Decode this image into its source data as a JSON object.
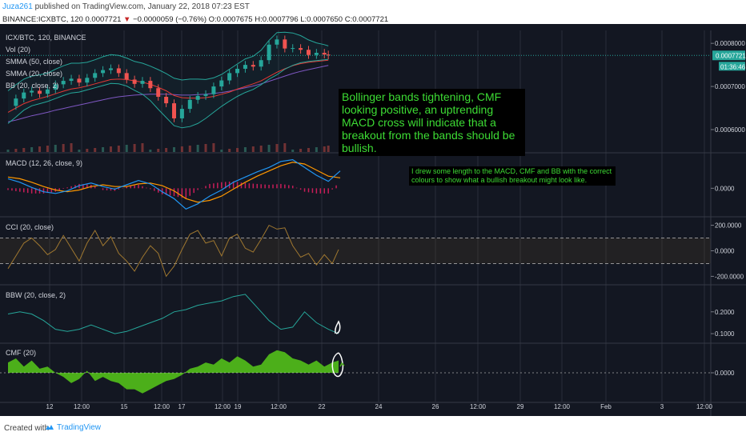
{
  "header": {
    "author": "Juza261",
    "published": "published on TradingView.com, January 22, 2018 07:23 EST",
    "symbol": "BINANCE:ICXBTC, 120",
    "last": "0.0007721",
    "arrow": "▼",
    "change": "−0.0000059 (−0.76%)",
    "ohlc": "O:0.0007675 H:0.0007796 L:0.0007650 C:0.0007721"
  },
  "panes": {
    "price": {
      "labels": [
        "ICX/BTC, 120, BINANCE",
        "Vol (20)",
        "SMMA (50, close)",
        "SMMA (20, close)",
        "BB (20, close, 2)"
      ],
      "axis": [
        "0.0008000",
        "0.0007000",
        "0.0006000"
      ],
      "last_price": "0.0007721",
      "countdown": "01:36:46"
    },
    "macd": {
      "label": "MACD (12, 26, close, 9)",
      "axis": [
        "0.0000"
      ]
    },
    "cci": {
      "label": "CCI (20, close)",
      "axis": [
        "200.0000",
        "0.0000",
        "-200.0000"
      ]
    },
    "bbw": {
      "label": "BBW (20, close, 2)",
      "axis": [
        "0.2000",
        "0.1000"
      ]
    },
    "cmf": {
      "label": "CMF (20)",
      "axis": [
        "0.0000"
      ]
    }
  },
  "time_axis": [
    "12",
    "12:00",
    "15",
    "12:00",
    "17",
    "12:00",
    "19",
    "12:00",
    "22",
    "24",
    "26",
    "12:00",
    "29",
    "12:00",
    "Feb",
    "3",
    "12:00"
  ],
  "notes": {
    "big": "Bollinger bands tightening, CMF looking positive, an uptrending MACD cross will indicate that a breakout from the bands should be bullish.",
    "small": "I drew some length to the MACD, CMF and BB with the correct colours to show what a bullish breakout might look like."
  },
  "footer": {
    "created": "Created with",
    "brand": "TradingView"
  },
  "colors": {
    "background": "#131722",
    "grid": "#2a2e39",
    "bb": "#26a69a",
    "smma50": "#7e57c2",
    "smma20": "#e53935",
    "macd": "#2196f3",
    "signal": "#ff9800",
    "hist": "#e91e63",
    "cci": "#a07830",
    "bbw": "#26a69a",
    "cmf": "#4caf1a",
    "note_text": "#3ddc34",
    "last_price_tag": "#26a69a"
  },
  "chart_data": [
    {
      "type": "line",
      "name": "ICX/BTC price",
      "title": "ICX/BTC, 120, BINANCE",
      "x": [
        0,
        10,
        20,
        30,
        40,
        50,
        60,
        70,
        80,
        90,
        100,
        110,
        120,
        130,
        140,
        150,
        160,
        170,
        180,
        190,
        200,
        210,
        220,
        230,
        240,
        250,
        260,
        270,
        280,
        290,
        300,
        310,
        320,
        330,
        340,
        350,
        360,
        370,
        380,
        390,
        400,
        405
      ],
      "series": [
        {
          "name": "close",
          "values": [
            0.000655,
            0.000672,
            0.000686,
            0.00069,
            0.000683,
            0.000693,
            0.000705,
            0.000713,
            0.000718,
            0.000709,
            0.00072,
            0.000731,
            0.000738,
            0.000742,
            0.000731,
            0.000716,
            0.000706,
            0.000713,
            0.000696,
            0.000676,
            0.000661,
            0.000626,
            0.000648,
            0.000669,
            0.000678,
            0.000682,
            0.0007,
            0.000714,
            0.000731,
            0.000741,
            0.00075,
            0.000746,
            0.000761,
            0.000797,
            0.000809,
            0.000788,
            0.000789,
            0.000785,
            0.000773,
            0.000778,
            0.000774,
            0.000772
          ]
        },
        {
          "name": "BB upper",
          "values": [
            0.00069,
            0.000704,
            0.000717,
            0.000724,
            0.000727,
            0.000731,
            0.00074,
            0.000748,
            0.000754,
            0.000754,
            0.000756,
            0.000762,
            0.000769,
            0.000774,
            0.000772,
            0.000766,
            0.000758,
            0.000754,
            0.000747,
            0.000739,
            0.00073,
            0.000719,
            0.000715,
            0.000717,
            0.000717,
            0.000716,
            0.00072,
            0.000728,
            0.00074,
            0.000752,
            0.000764,
            0.00077,
            0.000784,
            0.000807,
            0.000825,
            0.000826,
            0.000824,
            0.000818,
            0.000808,
            0.000801,
            0.000797,
            0.000794
          ]
        },
        {
          "name": "BB lower",
          "values": [
            0.000614,
            0.000629,
            0.000645,
            0.000655,
            0.00066,
            0.000665,
            0.000672,
            0.000679,
            0.000685,
            0.000687,
            0.000692,
            0.000697,
            0.000702,
            0.000707,
            0.000706,
            0.000701,
            0.000691,
            0.000682,
            0.000667,
            0.000647,
            0.000628,
            0.000609,
            0.000604,
            0.000607,
            0.000614,
            0.000626,
            0.00064,
            0.000654,
            0.000666,
            0.000677,
            0.000686,
            0.000693,
            0.000704,
            0.000717,
            0.000727,
            0.00074,
            0.000749,
            0.000755,
            0.000758,
            0.00076,
            0.000762,
            0.000763
          ]
        },
        {
          "name": "SMMA (20, close)",
          "values": [
            0.00064,
            0.00065,
            0.00066,
            0.000667,
            0.000672,
            0.000677,
            0.000683,
            0.000689,
            0.000694,
            0.000697,
            0.000701,
            0.000706,
            0.000711,
            0.000716,
            0.000717,
            0.000716,
            0.000713,
            0.00071,
            0.000705,
            0.000698,
            0.00069,
            0.000679,
            0.000674,
            0.000673,
            0.000673,
            0.000674,
            0.000677,
            0.000682,
            0.000687,
            0.000694,
            0.0007,
            0.000706,
            0.000713,
            0.000723,
            0.000733,
            0.000741,
            0.000748,
            0.000753,
            0.000756,
            0.000758,
            0.00076,
            0.000761
          ]
        },
        {
          "name": "SMMA (50, close)",
          "values": [
            0.000618,
            0.000622,
            0.000627,
            0.000632,
            0.000636,
            0.00064,
            0.000645,
            0.000649,
            0.000653,
            0.000657,
            0.000661,
            0.000665,
            0.000669,
            0.000673,
            0.000676,
            0.000678,
            0.00068,
            0.000681,
            0.000682,
            0.000682,
            0.000682,
            0.000681,
            0.00068,
            0.00068,
            0.000681,
            0.000682,
            0.000684,
            0.000686,
            0.000689,
            0.000693,
            0.000697,
            0.000701,
            0.000706,
            0.000712,
            0.000718,
            0.000724,
            0.00073,
            0.000735,
            0.000739,
            0.000743,
            0.000747,
            0.000749
          ]
        }
      ],
      "ylim": [
        0.000548,
        0.00083
      ]
    },
    {
      "type": "line",
      "name": "MACD",
      "title": "MACD (12, 26, close, 9)",
      "x": [
        0,
        15,
        30,
        45,
        60,
        75,
        90,
        105,
        120,
        135,
        150,
        165,
        180,
        195,
        210,
        225,
        240,
        255,
        270,
        285,
        300,
        315,
        330,
        345,
        360,
        375,
        390,
        405,
        420
      ],
      "series": [
        {
          "name": "MACD",
          "values": [
            11,
            7,
            1,
            -4,
            -6,
            -3,
            3,
            6,
            2,
            -1,
            4,
            9,
            5,
            -4,
            -12,
            -24,
            -18,
            -9,
            -2,
            7,
            13,
            19,
            24,
            31,
            33,
            24,
            15,
            8,
            20
          ]
        },
        {
          "name": "Signal",
          "values": [
            13,
            11,
            7,
            2,
            -2,
            -4,
            -2,
            2,
            4,
            2,
            2,
            5,
            6,
            3,
            -3,
            -12,
            -16,
            -14,
            -9,
            -1,
            7,
            14,
            20,
            26,
            30,
            28,
            21,
            14,
            12
          ]
        }
      ],
      "ylim": [
        -32,
        40
      ]
    },
    {
      "type": "line",
      "name": "CCI",
      "title": "CCI (20, close)",
      "x": [
        0,
        10,
        20,
        30,
        40,
        50,
        60,
        70,
        80,
        90,
        100,
        110,
        120,
        130,
        140,
        150,
        160,
        170,
        180,
        190,
        200,
        210,
        220,
        230,
        240,
        250,
        260,
        270,
        280,
        290,
        300,
        310,
        320,
        330,
        340,
        350,
        360,
        370,
        380,
        390,
        400,
        410,
        418
      ],
      "series": [
        {
          "name": "CCI",
          "values": [
            -140,
            -40,
            60,
            100,
            40,
            -30,
            10,
            120,
            20,
            -80,
            60,
            160,
            40,
            110,
            -20,
            -80,
            -160,
            -50,
            40,
            -20,
            -200,
            -120,
            10,
            130,
            160,
            60,
            80,
            -40,
            100,
            130,
            20,
            -10,
            90,
            200,
            170,
            180,
            40,
            -50,
            -20,
            -110,
            -30,
            -100,
            10
          ]
        }
      ],
      "bands": [
        100,
        -100
      ],
      "ylim": [
        -260,
        260
      ]
    },
    {
      "type": "line",
      "name": "BBW",
      "title": "BBW (20, close, 2)",
      "x": [
        0,
        15,
        30,
        45,
        60,
        75,
        90,
        105,
        120,
        135,
        150,
        165,
        180,
        195,
        210,
        225,
        240,
        255,
        270,
        285,
        300,
        315,
        330,
        345,
        360,
        375,
        390,
        405,
        418
      ],
      "series": [
        {
          "name": "BBW",
          "values": [
            0.19,
            0.2,
            0.19,
            0.16,
            0.12,
            0.11,
            0.12,
            0.14,
            0.12,
            0.1,
            0.11,
            0.13,
            0.15,
            0.17,
            0.2,
            0.21,
            0.23,
            0.24,
            0.25,
            0.27,
            0.28,
            0.22,
            0.16,
            0.12,
            0.13,
            0.2,
            0.15,
            0.12,
            0.1
          ]
        }
      ],
      "ylim": [
        0.06,
        0.32
      ]
    },
    {
      "type": "area",
      "name": "CMF",
      "title": "CMF (20)",
      "x": [
        0,
        10,
        20,
        30,
        40,
        50,
        60,
        70,
        80,
        90,
        100,
        110,
        120,
        130,
        140,
        150,
        160,
        170,
        180,
        190,
        200,
        210,
        220,
        230,
        240,
        250,
        260,
        270,
        280,
        290,
        300,
        310,
        320,
        330,
        340,
        350,
        360,
        370,
        380,
        390,
        400,
        410,
        418
      ],
      "series": [
        {
          "name": "CMF",
          "values": [
            0.1,
            0.14,
            0.06,
            0.12,
            0.04,
            0.06,
            0.0,
            -0.04,
            -0.1,
            -0.06,
            0.02,
            -0.08,
            -0.04,
            -0.08,
            -0.1,
            -0.16,
            -0.16,
            -0.2,
            -0.16,
            -0.12,
            -0.08,
            -0.06,
            -0.02,
            0.04,
            0.06,
            0.1,
            0.08,
            0.14,
            0.1,
            0.16,
            0.12,
            0.06,
            0.08,
            0.18,
            0.22,
            0.2,
            0.14,
            0.12,
            0.08,
            0.12,
            0.06,
            0.1,
            0.12
          ]
        }
      ],
      "ylim": [
        -0.28,
        0.28
      ]
    }
  ]
}
